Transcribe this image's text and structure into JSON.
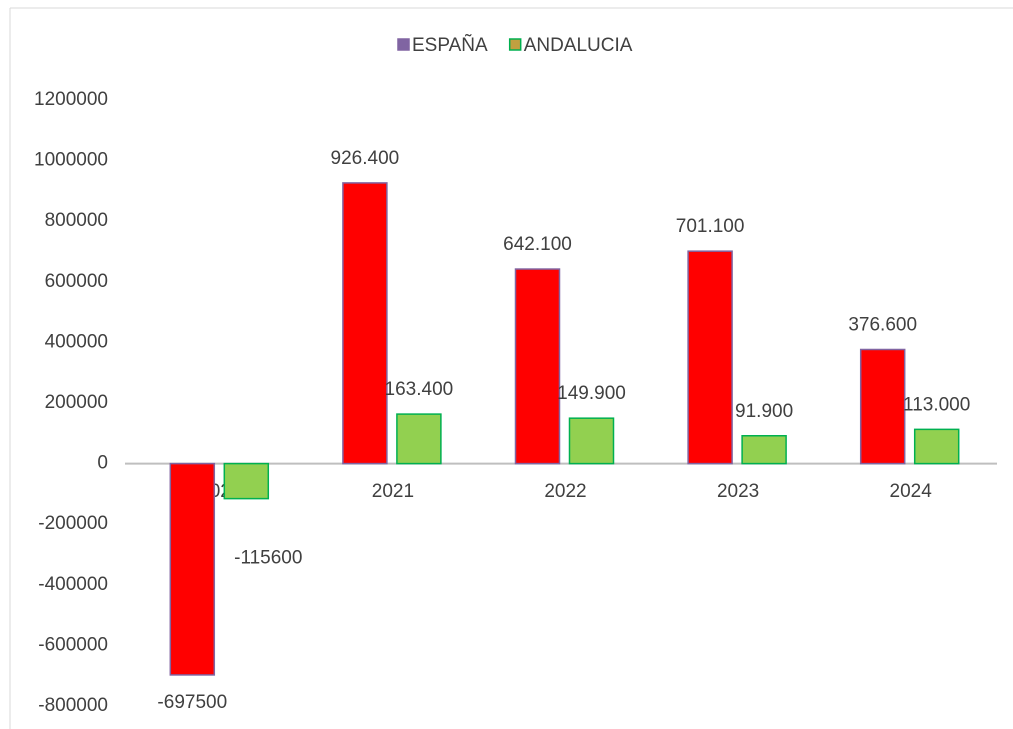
{
  "chart_data": {
    "type": "bar",
    "categories": [
      "2020",
      "2021",
      "2022",
      "2023",
      "2024"
    ],
    "series": [
      {
        "name": "ESPAÑA",
        "color": "#ff0000",
        "edgecolor": "#8064a2",
        "values": [
          -697500,
          926400,
          642100,
          701100,
          376600
        ],
        "value_labels": [
          "-697500",
          "926.400",
          "642.100",
          "701.100",
          "376.600"
        ]
      },
      {
        "name": "ANDALUCIA",
        "color": "#92d050",
        "edgecolor": "#00b050",
        "values": [
          -115600,
          163400,
          149900,
          91900,
          113000
        ],
        "value_labels": [
          "-115600",
          "163.400",
          "149.900",
          "91.900",
          "113.000"
        ]
      }
    ],
    "ylim": [
      -800000,
      1200000
    ],
    "yticks": [
      -800000,
      -600000,
      -400000,
      -200000,
      0,
      200000,
      400000,
      600000,
      800000,
      1000000,
      1200000
    ],
    "legend": "top"
  }
}
